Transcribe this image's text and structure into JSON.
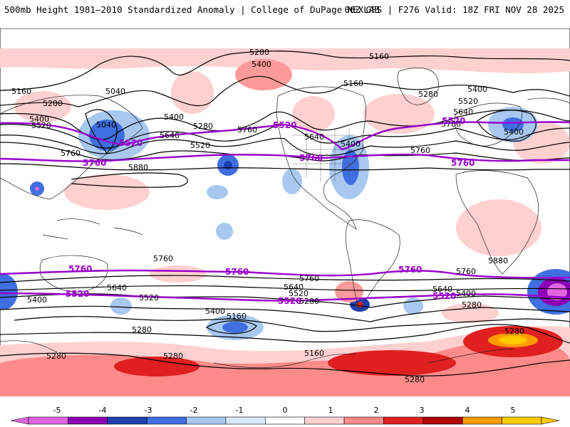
{
  "header": {
    "title": "500mb Height 1981–2010 Standardized Anomaly | College of DuPage NEXLAB",
    "run": "06Z GFS | F276 Valid: 18Z FRI NOV 28 2025"
  },
  "map": {
    "contour_labels": {
      "c5280": "5280",
      "c5160": "5160",
      "c5040": "5040",
      "c5400": "5400",
      "c5520": "5520",
      "c5640": "5640",
      "c5760": "5760",
      "c5880": "5880"
    },
    "bold_contours": [
      "5520",
      "5760"
    ],
    "bold_contour_color": "#9900cc"
  },
  "colorbar": {
    "ticks": [
      "-5",
      "-4",
      "-3",
      "-2",
      "-1",
      "0",
      "1",
      "2",
      "3",
      "4",
      "5"
    ],
    "colors": [
      "#e066e0",
      "#8c00b4",
      "#1f3fb0",
      "#3f6fe0",
      "#a8c8f0",
      "#d8e8fa",
      "#ffffff",
      "#ffd0d0",
      "#ff8a8a",
      "#e02020",
      "#b00000",
      "#ff9a00",
      "#ffcc00"
    ]
  }
}
